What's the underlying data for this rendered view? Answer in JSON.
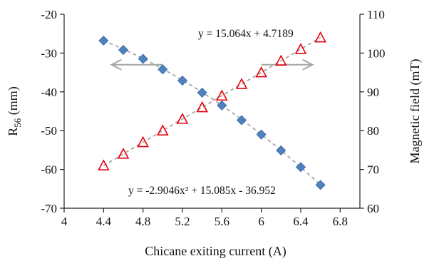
{
  "chart_data": {
    "type": "scatter",
    "x": [
      4.4,
      4.6,
      4.8,
      5.0,
      5.2,
      5.4,
      5.6,
      5.8,
      6.0,
      6.2,
      6.4,
      6.6
    ],
    "series": [
      {
        "values": [
          -26.8,
          -29.2,
          -31.5,
          -34.2,
          -37.1,
          -40.2,
          -43.5,
          -47.3,
          -51.0,
          -55.1,
          -59.4,
          -64.0
        ],
        "axis": "left",
        "marker": "diamond",
        "color": "#4f81bd",
        "fit": {
          "kind": "polynomial",
          "degree": 2,
          "coefficients": [
            -2.9046,
            15.085,
            -36.952
          ]
        }
      },
      {
        "values": [
          71.0,
          74.0,
          77.0,
          80.0,
          83.0,
          86.0,
          89.0,
          92.0,
          95.0,
          98.0,
          101.0,
          104.0
        ],
        "axis": "right",
        "marker": "triangle",
        "color": "#e8000b",
        "fit": {
          "kind": "linear",
          "coefficients": [
            15.064,
            4.7189
          ]
        }
      }
    ],
    "xlabel": "Chicane exiting current (A)",
    "ylabel_left": {
      "main": "R",
      "sub": "56",
      "rest": " (mm)"
    },
    "ylabel_right": "Magnetic field (mT)",
    "xlim": [
      4,
      7
    ],
    "ylim_left": [
      -70,
      -20
    ],
    "ylim_right": [
      60,
      110
    ],
    "xticks": [
      4,
      4.4,
      4.8,
      5.2,
      5.6,
      6,
      6.4,
      6.8
    ],
    "xtick_labels": [
      "4",
      "4.4",
      "4.8",
      "5.2",
      "5.6",
      "6",
      "6.4",
      "6.8"
    ],
    "yticks_left": [
      -70,
      -60,
      -50,
      -40,
      -30,
      -20
    ],
    "yticks_right": [
      60,
      70,
      80,
      90,
      100,
      110
    ],
    "annotations": {
      "linear_equation": "y = 15.064x + 4.7189",
      "poly_equation": "y = -2.9046x² + 15.085x - 36.952"
    },
    "arrows": [
      {
        "points_to": "left",
        "from_x": 5.0,
        "to_x": 4.48,
        "y_left": -33
      },
      {
        "points_to": "right",
        "from_x": 6.0,
        "to_x": 6.52,
        "y_left": -33
      }
    ],
    "trendline_color": "#a6a6a6",
    "arrow_color": "#a6a6a6",
    "grid": false,
    "legend": "none"
  }
}
